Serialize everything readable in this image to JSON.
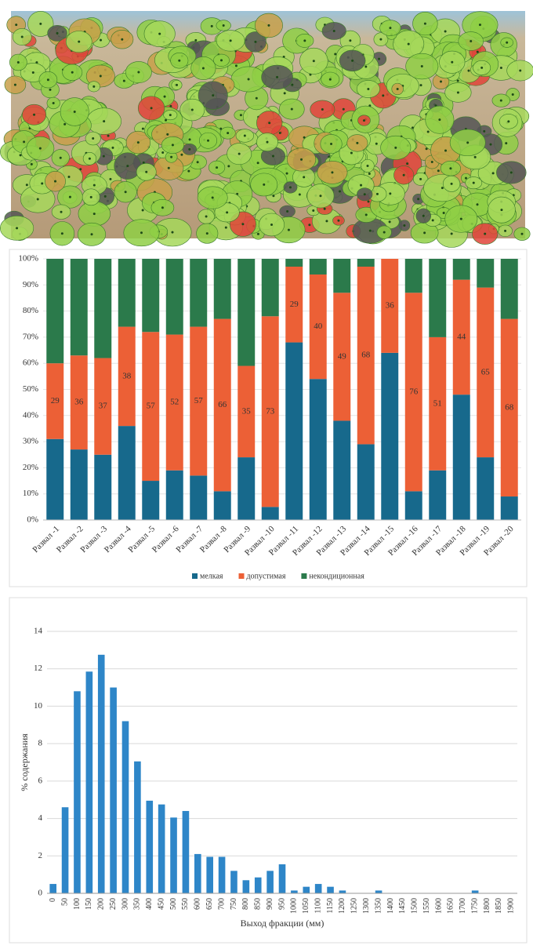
{
  "chart_data": [
    {
      "type": "stacked-bar",
      "categories": [
        "Развал -1",
        "Развал -2",
        "Развал -3",
        "Развал -4",
        "Развал -5",
        "Развал -6",
        "Развал -7",
        "Развал -8",
        "Развал -9",
        "Развал -10",
        "Развал -11",
        "Развал -12",
        "Развал -13",
        "Развал -14",
        "Развал -15",
        "Развал -16",
        "Развал -17",
        "Развал -18",
        "Развал -19",
        "Развал -20"
      ],
      "series": [
        {
          "name": "мелкая",
          "color": "#17698c",
          "values": [
            31,
            27,
            25,
            36,
            15,
            19,
            17,
            11,
            24,
            5,
            68,
            54,
            38,
            29,
            64,
            11,
            19,
            48,
            24,
            9
          ]
        },
        {
          "name": "допустимая",
          "color": "#ec6036",
          "labels": true,
          "values": [
            29,
            36,
            37,
            38,
            57,
            52,
            57,
            66,
            35,
            73,
            29,
            40,
            49,
            68,
            36,
            76,
            51,
            44,
            65,
            68
          ]
        },
        {
          "name": "некондиционная",
          "color": "#2b7a4b",
          "values": [
            40,
            37,
            38,
            26,
            28,
            29,
            26,
            23,
            41,
            22,
            3,
            6,
            13,
            3,
            0,
            13,
            30,
            8,
            11,
            23
          ]
        }
      ],
      "ylim": [
        0,
        100
      ],
      "yticks": [
        {
          "value": 0,
          "label": "0%"
        },
        {
          "value": 10,
          "label": "10%"
        },
        {
          "value": 20,
          "label": "20%"
        },
        {
          "value": 30,
          "label": "30%"
        },
        {
          "value": 40,
          "label": "40%"
        },
        {
          "value": 50,
          "label": "50%"
        },
        {
          "value": 60,
          "label": "60%"
        },
        {
          "value": 70,
          "label": "70%"
        },
        {
          "value": 80,
          "label": "80%"
        },
        {
          "value": 90,
          "label": "90%"
        },
        {
          "value": 100,
          "label": "100%"
        }
      ],
      "grid": true,
      "legend": "bottom"
    },
    {
      "type": "bar",
      "x_label": "Выход фракции (мм)",
      "y_label": "% содержания",
      "categories": [
        0,
        50,
        100,
        150,
        200,
        250,
        300,
        350,
        400,
        450,
        500,
        550,
        600,
        650,
        700,
        750,
        800,
        850,
        900,
        950,
        1000,
        1050,
        1100,
        1150,
        1200,
        1250,
        1300,
        1350,
        1400,
        1450,
        1500,
        1550,
        1600,
        1650,
        1700,
        1750,
        1800,
        1850,
        1900
      ],
      "values": [
        0.5,
        4.6,
        10.8,
        11.85,
        12.75,
        11,
        9.2,
        7.05,
        4.95,
        4.75,
        4.05,
        4.4,
        2.1,
        1.95,
        1.95,
        1.2,
        0.7,
        0.85,
        1.2,
        1.55,
        0.15,
        0.35,
        0.5,
        0.35,
        0.15,
        0,
        0,
        0.15,
        0,
        0,
        0,
        0,
        0,
        0,
        0,
        0.15,
        0,
        0,
        0
      ],
      "color": "#2e86c8",
      "ylim": [
        0,
        14
      ],
      "yticks": [
        0,
        2,
        4,
        6,
        8,
        10,
        12,
        14
      ],
      "grid": true
    }
  ]
}
